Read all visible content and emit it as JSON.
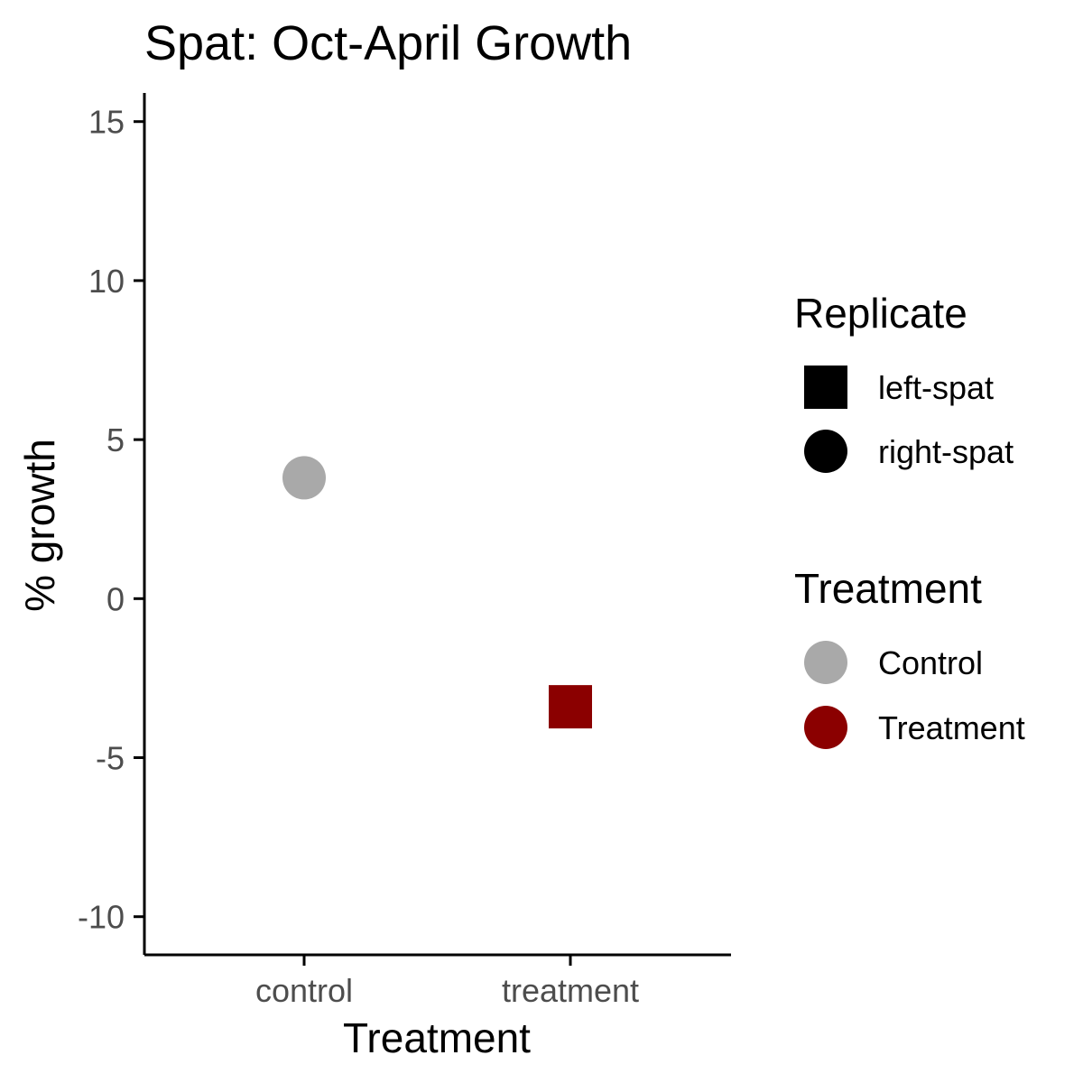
{
  "chart_data": {
    "type": "scatter",
    "title": "Spat: Oct-April Growth",
    "xlabel": "Treatment",
    "ylabel": "% growth",
    "categories": [
      "control",
      "treatment"
    ],
    "ylim": [
      -11.2,
      15.9
    ],
    "yticks": [
      15,
      10,
      5,
      0,
      -5,
      -10
    ],
    "ytick_labels": [
      "15",
      "10",
      "5",
      "0",
      "-5",
      "-10"
    ],
    "points": [
      {
        "x": "control",
        "y": 3.8,
        "treatment": "Control",
        "replicate": "right-spat"
      },
      {
        "x": "treatment",
        "y": -3.4,
        "treatment": "Treatment",
        "replicate": "left-spat"
      }
    ],
    "legends": [
      {
        "title": "Replicate",
        "entries": [
          {
            "label": "left-spat",
            "shape": "square"
          },
          {
            "label": "right-spat",
            "shape": "circle"
          }
        ]
      },
      {
        "title": "Treatment",
        "entries": [
          {
            "label": "Control",
            "color": "#a9a9a9"
          },
          {
            "label": "Treatment",
            "color": "#8b0000"
          }
        ]
      }
    ],
    "legend_position": "right",
    "grid": false,
    "colors": {
      "Control": "#a9a9a9",
      "Treatment": "#8b0000",
      "neutral": "#000000"
    }
  }
}
